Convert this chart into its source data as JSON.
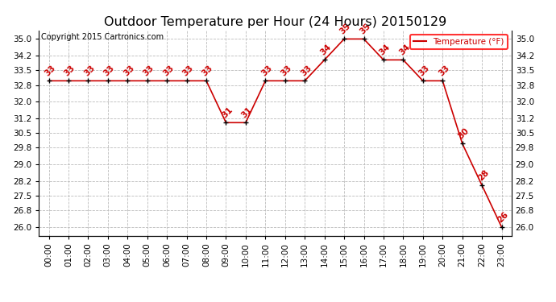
{
  "title": "Outdoor Temperature per Hour (24 Hours) 20150129",
  "copyright": "Copyright 2015 Cartronics.com",
  "legend_label": "Temperature (°F)",
  "hours": [
    0,
    1,
    2,
    3,
    4,
    5,
    6,
    7,
    8,
    9,
    10,
    11,
    12,
    13,
    14,
    15,
    16,
    17,
    18,
    19,
    20,
    21,
    22,
    23
  ],
  "temperatures": [
    33,
    33,
    33,
    33,
    33,
    33,
    33,
    33,
    33,
    31,
    31,
    33,
    33,
    33,
    34,
    35,
    35,
    34,
    34,
    33,
    33,
    30,
    28,
    26
  ],
  "ylim_min": 25.6,
  "ylim_max": 35.42,
  "yticks": [
    26.0,
    26.8,
    27.5,
    28.2,
    29.0,
    29.8,
    30.5,
    31.2,
    32.0,
    32.8,
    33.5,
    34.2,
    35.0
  ],
  "line_color": "#cc0000",
  "marker_color": "#000000",
  "bg_color": "#ffffff",
  "grid_color": "#bbbbbb",
  "title_fontsize": 11.5,
  "label_fontsize": 7.5,
  "annotation_fontsize": 7.5,
  "copyright_fontsize": 7.0
}
